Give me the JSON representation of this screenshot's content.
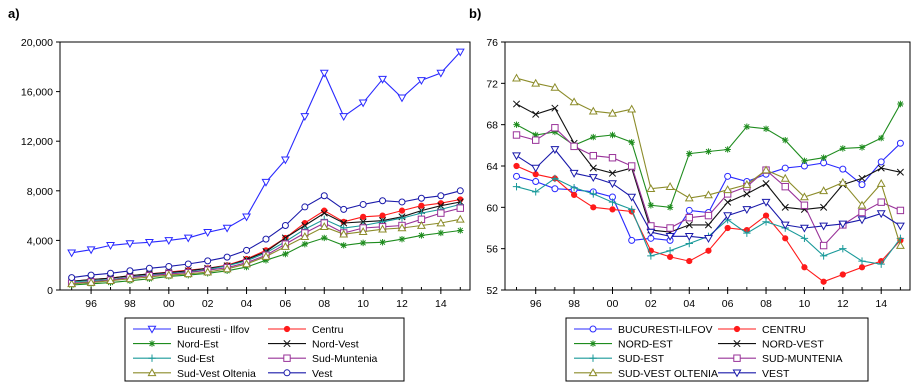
{
  "chart_data": [
    {
      "type": "line",
      "panel_label": "a)",
      "title": "",
      "xlabel": "",
      "ylabel": "",
      "x": [
        1995,
        1996,
        1997,
        1998,
        1999,
        2000,
        2001,
        2002,
        2003,
        2004,
        2005,
        2006,
        2007,
        2008,
        2009,
        2010,
        2011,
        2012,
        2013,
        2014,
        2015
      ],
      "x_tick_labels": [
        "96",
        "98",
        "00",
        "02",
        "04",
        "06",
        "08",
        "10",
        "12",
        "14"
      ],
      "x_tick_values": [
        1996,
        1998,
        2000,
        2002,
        2004,
        2006,
        2008,
        2010,
        2012,
        2014
      ],
      "xlim": [
        1994.4,
        2015.5
      ],
      "ylim": [
        0,
        20000
      ],
      "y_ticks": [
        0,
        4000,
        8000,
        12000,
        16000,
        20000
      ],
      "y_tick_labels": [
        "0",
        "4,000",
        "8,000",
        "12,000",
        "16,000",
        "20,000"
      ],
      "grid": false,
      "legend_position": "bottom",
      "legend_columns": 2,
      "series": [
        {
          "name": "Bucuresti - Ilfov",
          "color": "#2a2aff",
          "marker": "tri_down",
          "values": [
            3000,
            3250,
            3600,
            3750,
            3850,
            4000,
            4200,
            4650,
            5000,
            5900,
            8700,
            10500,
            14000,
            17500,
            14000,
            15100,
            17000,
            15500,
            16900,
            17500,
            19200
          ]
        },
        {
          "name": "Centru",
          "color": "#ff1a1a",
          "marker": "dot",
          "values": [
            700,
            850,
            950,
            1150,
            1300,
            1450,
            1600,
            1750,
            2000,
            2500,
            3200,
            4200,
            5400,
            6400,
            5500,
            5900,
            6000,
            6400,
            6800,
            7000,
            7300
          ]
        },
        {
          "name": "Nord-Est",
          "color": "#1e8c1e",
          "marker": "asterisk",
          "values": [
            400,
            500,
            600,
            750,
            900,
            1100,
            1200,
            1350,
            1550,
            1850,
            2400,
            2900,
            3700,
            4200,
            3600,
            3800,
            3850,
            4100,
            4400,
            4600,
            4800
          ]
        },
        {
          "name": "Nord-Vest",
          "color": "#111111",
          "marker": "x",
          "values": [
            700,
            850,
            950,
            1150,
            1300,
            1400,
            1550,
            1750,
            1950,
            2450,
            3100,
            4200,
            5200,
            6200,
            5400,
            5500,
            5600,
            5900,
            6400,
            6800,
            7100
          ]
        },
        {
          "name": "Sud-Est",
          "color": "#1a9a9a",
          "marker": "plus",
          "values": [
            650,
            750,
            850,
            1050,
            1200,
            1350,
            1450,
            1650,
            1950,
            2350,
            3000,
            3900,
            4900,
            5700,
            5000,
            5200,
            5500,
            5800,
            6200,
            6500,
            6900
          ]
        },
        {
          "name": "Sud-Muntenia",
          "color": "#993399",
          "marker": "square",
          "values": [
            550,
            650,
            800,
            1000,
            1150,
            1300,
            1400,
            1600,
            1800,
            2200,
            2800,
            3700,
            4600,
            5400,
            4600,
            5000,
            5100,
            5200,
            5700,
            6200,
            6600
          ]
        },
        {
          "name": "Sud-Vest Oltenia",
          "color": "#8c8c2a",
          "marker": "triangle",
          "values": [
            500,
            600,
            750,
            900,
            1050,
            1200,
            1300,
            1450,
            1700,
            2100,
            2700,
            3500,
            4300,
            5100,
            4500,
            4700,
            4900,
            5000,
            5200,
            5400,
            5700
          ]
        },
        {
          "name": "Vest",
          "color": "#1a1aaa",
          "marker": "circle",
          "values": [
            1000,
            1200,
            1350,
            1550,
            1750,
            1900,
            2100,
            2350,
            2650,
            3200,
            4100,
            5200,
            6700,
            7600,
            6500,
            6900,
            7200,
            7100,
            7400,
            7600,
            8000
          ]
        }
      ]
    },
    {
      "type": "line",
      "panel_label": "b)",
      "title": "",
      "xlabel": "",
      "ylabel": "",
      "x": [
        1995,
        1996,
        1997,
        1998,
        1999,
        2000,
        2001,
        2002,
        2003,
        2004,
        2005,
        2006,
        2007,
        2008,
        2009,
        2010,
        2011,
        2012,
        2013,
        2014,
        2015
      ],
      "x_tick_labels": [
        "96",
        "98",
        "00",
        "02",
        "04",
        "06",
        "08",
        "10",
        "12",
        "14"
      ],
      "x_tick_values": [
        1996,
        1998,
        2000,
        2002,
        2004,
        2006,
        2008,
        2010,
        2012,
        2014
      ],
      "xlim": [
        1994.4,
        2015.5
      ],
      "ylim": [
        52,
        76
      ],
      "y_ticks": [
        52,
        56,
        60,
        64,
        68,
        72,
        76
      ],
      "y_tick_labels": [
        "52",
        "56",
        "60",
        "64",
        "68",
        "72",
        "76"
      ],
      "grid": false,
      "legend_position": "bottom",
      "legend_columns": 2,
      "series": [
        {
          "name": "BUCURESTI-ILFOV",
          "color": "#2a2aff",
          "marker": "circle",
          "values": [
            63.0,
            62.5,
            61.8,
            61.7,
            61.5,
            61.0,
            56.8,
            57.0,
            56.8,
            59.7,
            59.5,
            63.0,
            62.5,
            63.2,
            63.8,
            64.0,
            64.3,
            63.7,
            62.2,
            64.4,
            66.2
          ]
        },
        {
          "name": "CENTRU",
          "color": "#ff1a1a",
          "marker": "dot",
          "values": [
            64.0,
            63.2,
            62.8,
            61.2,
            60.0,
            59.8,
            59.6,
            55.8,
            55.2,
            54.8,
            55.8,
            58.0,
            57.8,
            59.2,
            57.0,
            54.2,
            52.8,
            53.5,
            54.2,
            54.8,
            56.8
          ]
        },
        {
          "name": "NORD-EST",
          "color": "#1e8c1e",
          "marker": "asterisk",
          "values": [
            68.0,
            67.0,
            67.3,
            66.0,
            66.8,
            67.0,
            66.3,
            60.2,
            60.0,
            65.2,
            65.4,
            65.6,
            67.8,
            67.6,
            66.5,
            64.5,
            64.8,
            65.7,
            65.8,
            66.7,
            70.0
          ]
        },
        {
          "name": "NORD-VEST",
          "color": "#111111",
          "marker": "x",
          "values": [
            70.0,
            69.0,
            69.6,
            66.2,
            63.8,
            63.3,
            63.8,
            57.8,
            57.6,
            58.3,
            58.3,
            60.5,
            61.3,
            62.3,
            60.0,
            59.8,
            60.0,
            62.2,
            62.8,
            63.8,
            63.4
          ]
        },
        {
          "name": "SUD-EST",
          "color": "#1a9a9a",
          "marker": "plus",
          "values": [
            62.0,
            61.5,
            62.8,
            61.9,
            61.3,
            60.5,
            59.8,
            55.3,
            55.8,
            56.5,
            57.2,
            58.8,
            57.5,
            58.6,
            58.0,
            57.0,
            55.3,
            56.0,
            54.8,
            54.5,
            57.0
          ]
        },
        {
          "name": "SUD-MUNTENIA",
          "color": "#993399",
          "marker": "square",
          "values": [
            67.0,
            66.5,
            67.7,
            65.9,
            65.0,
            64.8,
            64.0,
            58.2,
            58.0,
            59.0,
            59.2,
            61.3,
            62.0,
            63.6,
            62.0,
            60.2,
            56.3,
            58.3,
            59.5,
            60.5,
            59.7
          ]
        },
        {
          "name": "SUD-VEST OLTENIA",
          "color": "#8c8c2a",
          "marker": "triangle",
          "values": [
            72.5,
            72.0,
            71.6,
            70.2,
            69.3,
            69.1,
            69.5,
            61.8,
            62.0,
            60.9,
            61.2,
            61.7,
            62.2,
            63.6,
            62.8,
            61.0,
            61.6,
            62.4,
            60.2,
            62.3,
            56.3
          ]
        },
        {
          "name": "VEST",
          "color": "#1a1aaa",
          "marker": "tri_down",
          "values": [
            65.0,
            63.8,
            65.6,
            63.3,
            62.9,
            62.3,
            61.0,
            57.6,
            57.2,
            57.2,
            57.0,
            59.2,
            59.8,
            60.5,
            58.3,
            58.0,
            58.2,
            58.4,
            58.8,
            59.4,
            58.2
          ]
        }
      ]
    }
  ]
}
